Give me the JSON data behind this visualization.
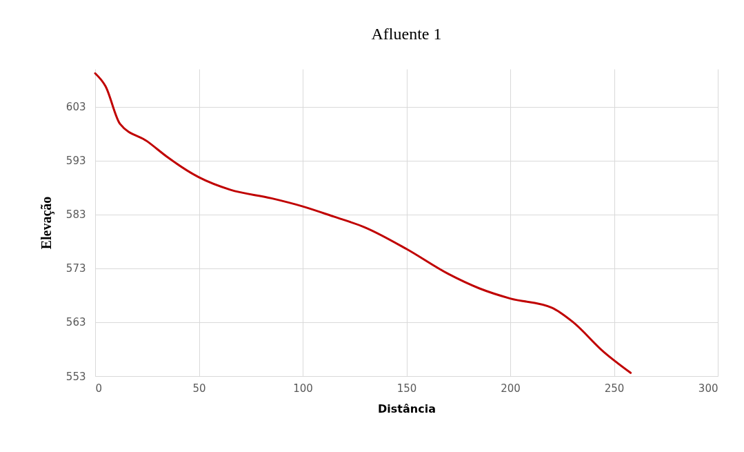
{
  "chart_data": {
    "type": "line",
    "title": "Afluente 1",
    "xlabel": "Distância",
    "ylabel": "Elevação",
    "xlim": [
      0,
      300
    ],
    "xticks": [
      0,
      50,
      100,
      150,
      200,
      250,
      300
    ],
    "ylim": [
      553,
      610
    ],
    "yticks": [
      553,
      563,
      573,
      583,
      593,
      603
    ],
    "grid": true,
    "marker": "none",
    "line_style": "solid",
    "series": [
      {
        "color": "#c00000",
        "x": [
          0,
          5,
          12,
          25,
          35,
          50,
          65,
          85,
          100,
          115,
          130,
          150,
          170,
          185,
          200,
          220,
          230,
          245,
          258
        ],
        "values": [
          609.2,
          606.8,
          599.8,
          596.6,
          593.6,
          589.9,
          587.6,
          586.0,
          584.5,
          582.6,
          580.6,
          576.6,
          572.0,
          569.3,
          567.4,
          565.7,
          563.1,
          557.5,
          553.6
        ]
      }
    ]
  }
}
